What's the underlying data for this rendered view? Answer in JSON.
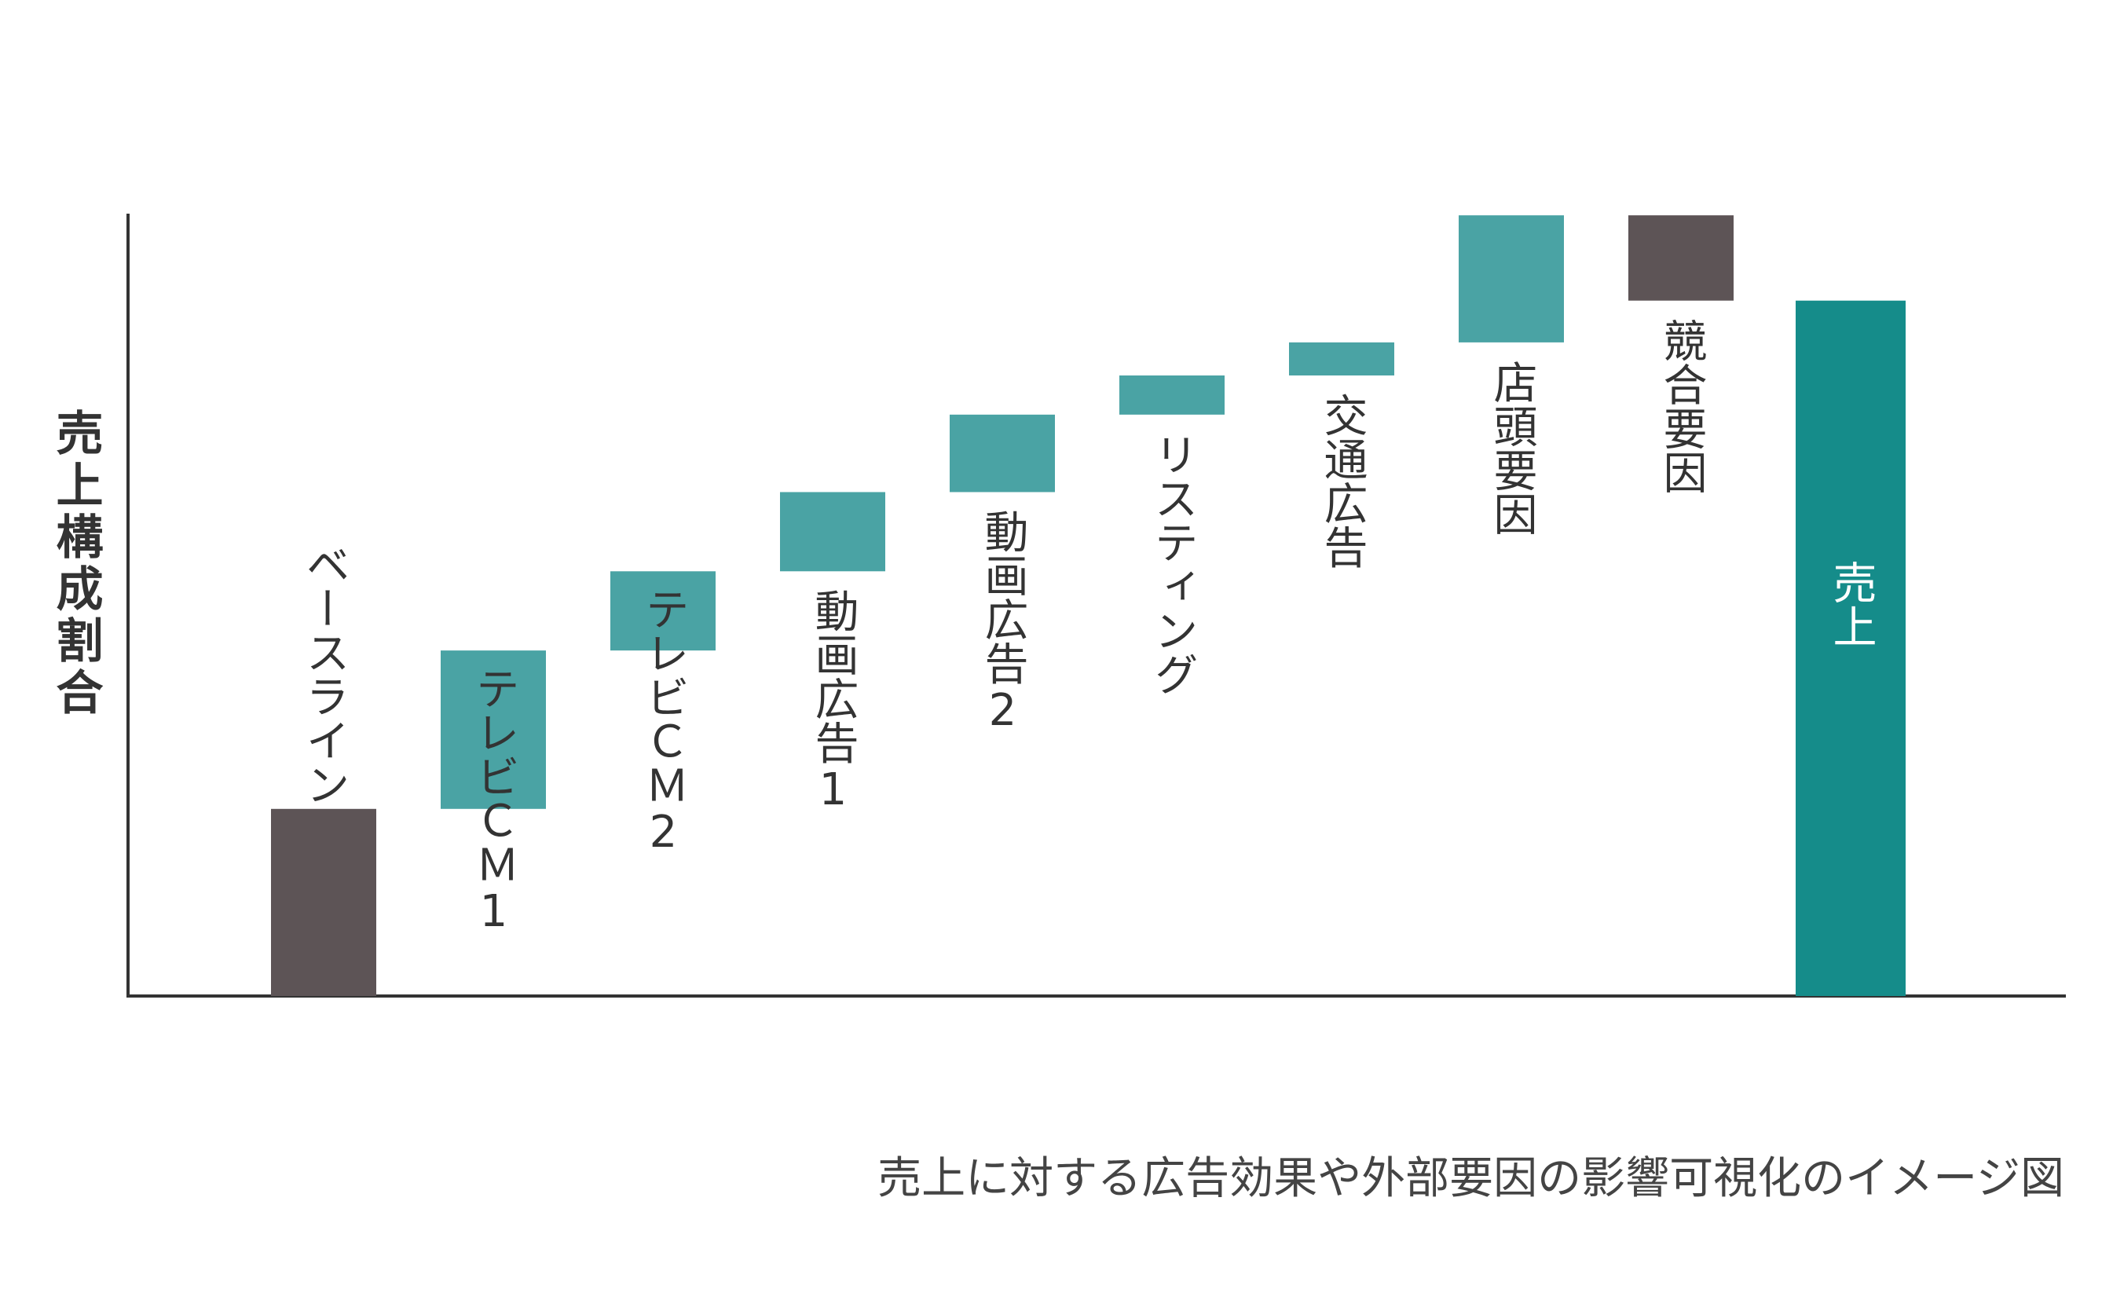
{
  "chart_data": {
    "type": "bar",
    "subtype": "waterfall",
    "title": "",
    "caption": "売上に対する広告効果や外部要因の影響可視化のイメージ図",
    "ylabel": "売上構成割合",
    "xlabel": "",
    "grid": false,
    "legend": "none",
    "ylim": [
      0,
      100
    ],
    "categories": [
      "ベースライン",
      "テレビＣＭ1",
      "テレビＣＭ2",
      "動画広告1",
      "動画広告2",
      "リスティング",
      "交通広告",
      "店頭要因",
      "競合要因",
      "売上"
    ],
    "steps": [
      {
        "label": "ベースライン",
        "start": 0,
        "end": 21.5,
        "kind": "base"
      },
      {
        "label": "テレビＣＭ1",
        "start": 21.5,
        "end": 39.7,
        "kind": "positive"
      },
      {
        "label": "テレビＣＭ2",
        "start": 39.7,
        "end": 48.8,
        "kind": "positive"
      },
      {
        "label": "動画広告1",
        "start": 48.8,
        "end": 57.9,
        "kind": "positive"
      },
      {
        "label": "動画広告2",
        "start": 57.9,
        "end": 66.8,
        "kind": "positive"
      },
      {
        "label": "リスティング",
        "start": 66.8,
        "end": 71.3,
        "kind": "positive"
      },
      {
        "label": "交通広告",
        "start": 71.3,
        "end": 75.1,
        "kind": "positive"
      },
      {
        "label": "店頭要因",
        "start": 75.1,
        "end": 89.7,
        "kind": "positive"
      },
      {
        "label": "競合要因",
        "start": 89.7,
        "end": 79.9,
        "kind": "negative"
      },
      {
        "label": "売上",
        "start": 0,
        "end": 79.9,
        "kind": "total"
      }
    ],
    "colors": {
      "positive": "#4aa3a4",
      "negative": "#5d5456",
      "base": "#5d5456",
      "total": "#158c8a",
      "axis": "#333333"
    }
  }
}
